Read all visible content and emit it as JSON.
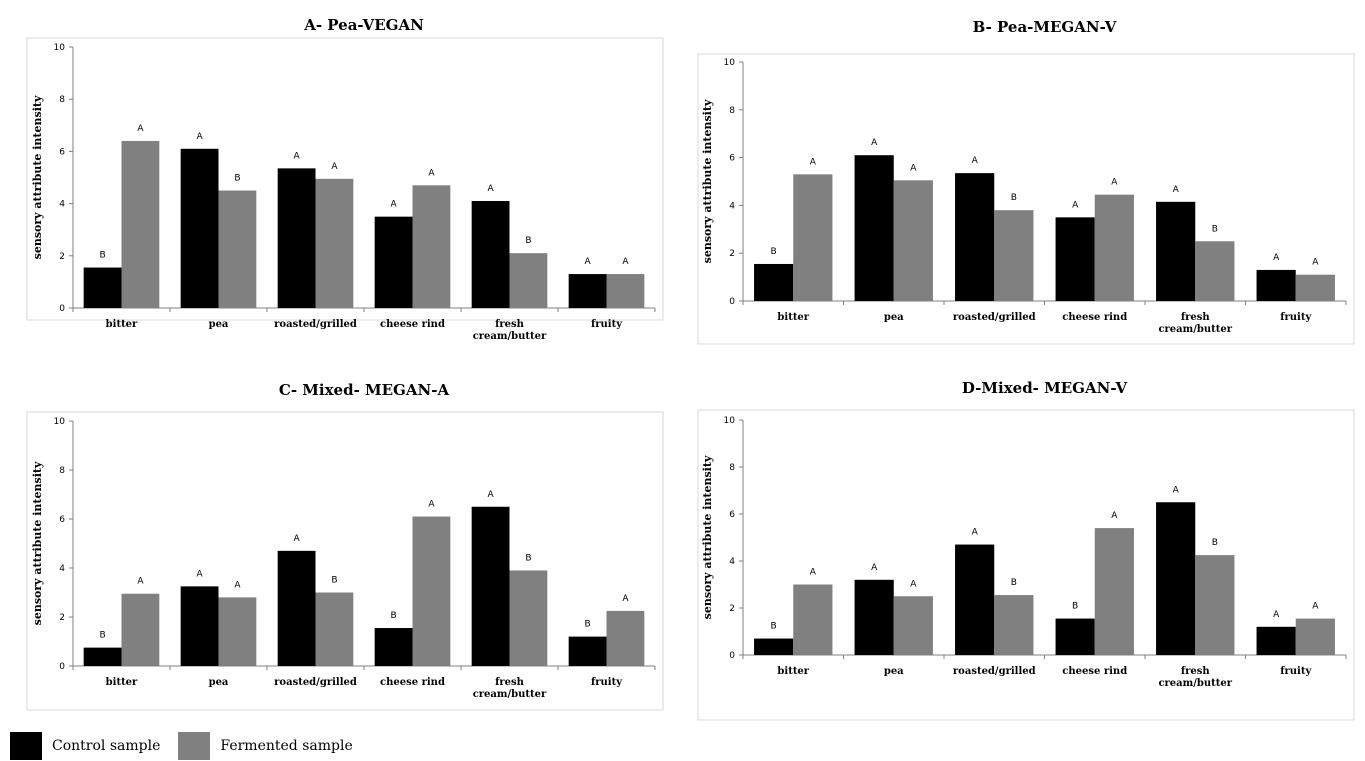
{
  "colors": {
    "control": "#000000",
    "fermented": "#808080"
  },
  "legend": {
    "control": "Control sample",
    "fermented": "Fermented sample"
  },
  "chart_data": [
    {
      "type": "bar",
      "title": "A- Pea-VEGAN",
      "ylabel": "sensory attribute intensity",
      "ylim": [
        0,
        10
      ],
      "yticks": [
        0,
        2,
        4,
        6,
        8,
        10
      ],
      "categories": [
        [
          "bitter"
        ],
        [
          "pea"
        ],
        [
          "roasted/grilled"
        ],
        [
          "cheese rind"
        ],
        [
          "fresh",
          "cream/butter"
        ],
        [
          "fruity"
        ]
      ],
      "series": [
        {
          "name": "Control sample",
          "values": [
            1.55,
            6.1,
            5.35,
            3.5,
            4.1,
            1.3
          ],
          "letters": [
            "B",
            "A",
            "A",
            "A",
            "A",
            "A"
          ]
        },
        {
          "name": "Fermented sample",
          "values": [
            6.4,
            4.5,
            4.95,
            4.7,
            2.1,
            1.3
          ],
          "letters": [
            "A",
            "B",
            "A",
            "A",
            "B",
            "A"
          ]
        }
      ]
    },
    {
      "type": "bar",
      "title": "B- Pea-MEGAN-V",
      "ylabel": "sensory attribute intensity",
      "ylim": [
        0,
        10
      ],
      "yticks": [
        0,
        2,
        4,
        6,
        8,
        10
      ],
      "categories": [
        [
          "bitter"
        ],
        [
          "pea"
        ],
        [
          "roasted/grilled"
        ],
        [
          "cheese rind"
        ],
        [
          "fresh",
          "cream/butter"
        ],
        [
          "fruity"
        ]
      ],
      "series": [
        {
          "name": "Control sample",
          "values": [
            1.55,
            6.1,
            5.35,
            3.5,
            4.15,
            1.3
          ],
          "letters": [
            "B",
            "A",
            "A",
            "A",
            "A",
            "A"
          ]
        },
        {
          "name": "Fermented sample",
          "values": [
            5.3,
            5.05,
            3.8,
            4.45,
            2.5,
            1.1
          ],
          "letters": [
            "A",
            "A",
            "B",
            "A",
            "B",
            "A"
          ]
        }
      ]
    },
    {
      "type": "bar",
      "title": "C- Mixed- MEGAN-A",
      "ylabel": "sensory attribute intensity",
      "ylim": [
        0,
        10
      ],
      "yticks": [
        0,
        2,
        4,
        6,
        8,
        10
      ],
      "categories": [
        [
          "bitter"
        ],
        [
          "pea"
        ],
        [
          "roasted/grilled"
        ],
        [
          "cheese rind"
        ],
        [
          "fresh",
          "cream/butter"
        ],
        [
          "fruity"
        ]
      ],
      "series": [
        {
          "name": "Control sample",
          "values": [
            0.75,
            3.25,
            4.7,
            1.55,
            6.5,
            1.2
          ],
          "letters": [
            "B",
            "A",
            "A",
            "B",
            "A",
            "B"
          ]
        },
        {
          "name": "Fermented sample",
          "values": [
            2.95,
            2.8,
            3.0,
            6.1,
            3.9,
            2.25
          ],
          "letters": [
            "A",
            "A",
            "B",
            "A",
            "B",
            "A"
          ]
        }
      ]
    },
    {
      "type": "bar",
      "title": "D-Mixed- MEGAN-V",
      "ylabel": "sensory attribute intensity",
      "ylim": [
        0,
        10
      ],
      "yticks": [
        0,
        2,
        4,
        6,
        8,
        10
      ],
      "categories": [
        [
          "bitter"
        ],
        [
          "pea"
        ],
        [
          "roasted/grilled"
        ],
        [
          "cheese rind"
        ],
        [
          "fresh",
          "cream/butter"
        ],
        [
          "fruity"
        ]
      ],
      "series": [
        {
          "name": "Control sample",
          "values": [
            0.7,
            3.2,
            4.7,
            1.55,
            6.5,
            1.2
          ],
          "letters": [
            "B",
            "A",
            "A",
            "B",
            "A",
            "A"
          ]
        },
        {
          "name": "Fermented sample",
          "values": [
            3.0,
            2.5,
            2.55,
            5.4,
            4.25,
            1.55
          ],
          "letters": [
            "A",
            "A",
            "B",
            "A",
            "B",
            "A"
          ]
        }
      ]
    }
  ]
}
